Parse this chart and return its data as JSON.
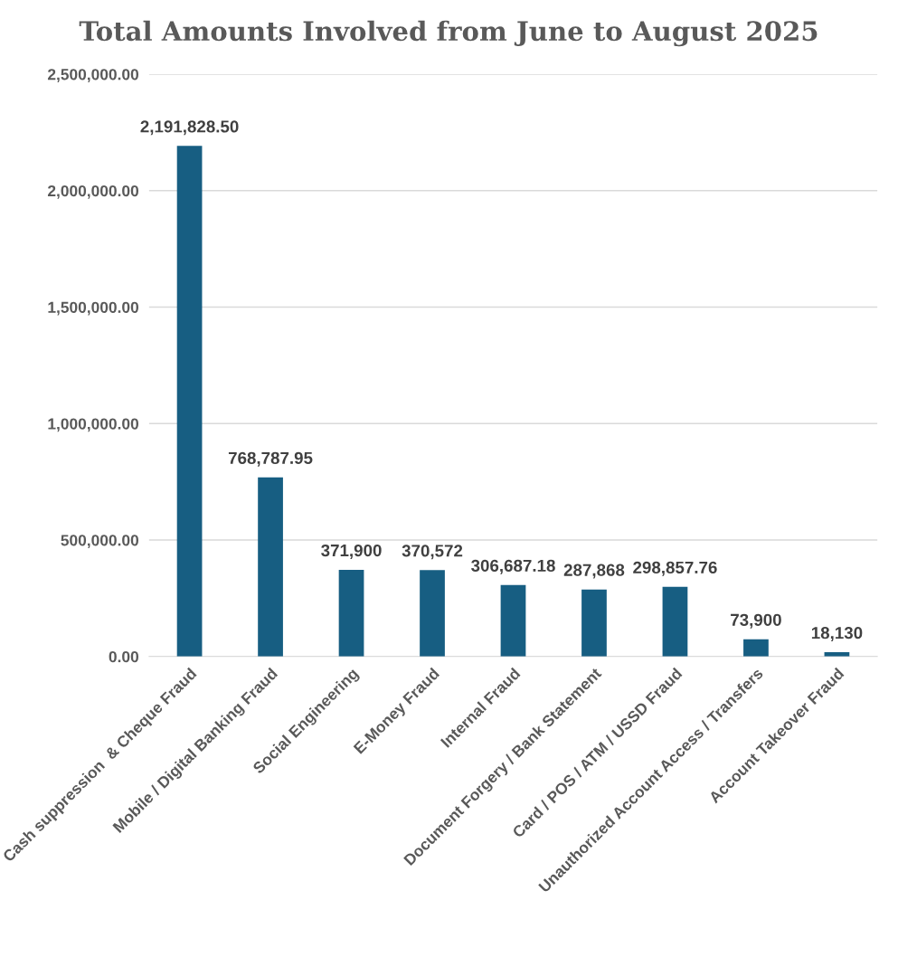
{
  "chart_data": {
    "type": "bar",
    "title": "Total Amounts Involved from June to August 2025",
    "categories": [
      "Cash suppression  & Cheque Fraud",
      "Mobile / Digital Banking Fraud",
      "Social Engineering",
      "E-Money Fraud",
      "Internal Fraud",
      "Document Forgery / Bank Statement",
      "Card / POS / ATM / USSD Fraud",
      "Unauthorized Account Access / Transfers",
      "Account Takeover Fraud"
    ],
    "values": [
      2191828.5,
      768787.95,
      371900,
      370572,
      306687.18,
      287868,
      298857.76,
      73900,
      18130
    ],
    "value_labels": [
      "2,191,828.50",
      "768,787.95",
      "371,900",
      "370,572",
      "306,687.18",
      "287,868",
      "298,857.76",
      "73,900",
      "18,130"
    ],
    "color": "#175e82",
    "ylim": [
      0,
      2500000
    ],
    "yticks": [
      {
        "value": 0,
        "label": "0.00"
      },
      {
        "value": 500000,
        "label": "500,000.00"
      },
      {
        "value": 1000000,
        "label": "1,000,000.00"
      },
      {
        "value": 1500000,
        "label": "1,500,000.00"
      },
      {
        "value": 2000000,
        "label": "2,000,000.00"
      },
      {
        "value": 2500000,
        "label": "2,500,000.00"
      }
    ],
    "grid": "y",
    "legend": false
  }
}
